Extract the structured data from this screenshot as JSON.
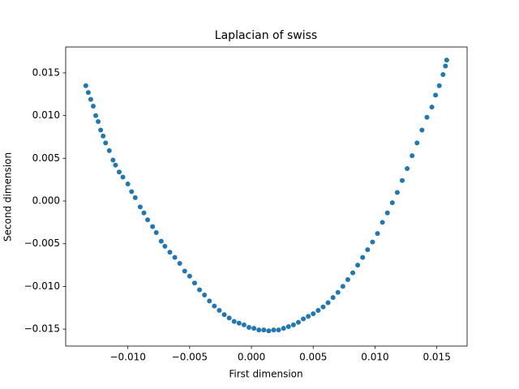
{
  "chart_data": {
    "type": "scatter",
    "title": "Laplacian of swiss",
    "xlabel": "First dimension",
    "ylabel": "Second dimension",
    "color": "#1f77b4",
    "xlim": [
      -0.01503,
      0.01745
    ],
    "ylim": [
      -0.01698,
      0.01803
    ],
    "xticks": [
      {
        "value": -0.01,
        "label": "−0.010"
      },
      {
        "value": -0.005,
        "label": "−0.005"
      },
      {
        "value": 0,
        "label": "0.000"
      },
      {
        "value": 0.005,
        "label": "0.005"
      },
      {
        "value": 0.01,
        "label": "0.010"
      },
      {
        "value": 0.015,
        "label": "0.015"
      }
    ],
    "yticks": [
      {
        "value": -0.015,
        "label": "−0.015"
      },
      {
        "value": -0.01,
        "label": "−0.010"
      },
      {
        "value": -0.005,
        "label": "−0.005"
      },
      {
        "value": 0,
        "label": "0.000"
      },
      {
        "value": 0.005,
        "label": "0.005"
      },
      {
        "value": 0.01,
        "label": "0.010"
      },
      {
        "value": 0.015,
        "label": "0.015"
      }
    ],
    "x": [
      -0.0134,
      -0.0132,
      -0.013,
      -0.0128,
      -0.0126,
      -0.0124,
      -0.0122,
      -0.012,
      -0.0118,
      -0.0115,
      -0.0112,
      -0.011,
      -0.0107,
      -0.0104,
      -0.01,
      -0.0097,
      -0.0094,
      -0.009,
      -0.0087,
      -0.0084,
      -0.008,
      -0.0077,
      -0.0073,
      -0.007,
      -0.0066,
      -0.0062,
      -0.0058,
      -0.0054,
      -0.005,
      -0.0046,
      -0.0042,
      -0.0038,
      -0.0034,
      -0.003,
      -0.0026,
      -0.0022,
      -0.0018,
      -0.0014,
      -0.001,
      -0.0006,
      -0.0002,
      0.0002,
      0.0006,
      0.001,
      0.0014,
      0.0018,
      0.0022,
      0.0026,
      0.003,
      0.0034,
      0.0038,
      0.0042,
      0.0046,
      0.005,
      0.0054,
      0.0058,
      0.0062,
      0.0066,
      0.007,
      0.0074,
      0.0078,
      0.0082,
      0.0086,
      0.009,
      0.0094,
      0.0098,
      0.0102,
      0.0106,
      0.011,
      0.0114,
      0.0118,
      0.0122,
      0.0126,
      0.013,
      0.0134,
      0.0138,
      0.0142,
      0.0146,
      0.0149,
      0.0152,
      0.0155,
      0.0157,
      0.0158
    ],
    "values": [
      0.0135,
      0.0127,
      0.0119,
      0.0111,
      0.01,
      0.0093,
      0.0083,
      0.0076,
      0.0068,
      0.0059,
      0.0048,
      0.0042,
      0.0034,
      0.0028,
      0.002,
      0.0011,
      0.0004,
      -0.0007,
      -0.0014,
      -0.0022,
      -0.003,
      -0.0037,
      -0.0047,
      -0.0053,
      -0.006,
      -0.0066,
      -0.0073,
      -0.0082,
      -0.0088,
      -0.0096,
      -0.0104,
      -0.011,
      -0.0117,
      -0.0123,
      -0.0128,
      -0.0133,
      -0.0137,
      -0.0141,
      -0.0143,
      -0.0145,
      -0.0148,
      -0.0149,
      -0.0151,
      -0.0151,
      -0.0152,
      -0.0151,
      -0.0151,
      -0.0149,
      -0.0147,
      -0.0145,
      -0.0142,
      -0.0138,
      -0.0135,
      -0.0132,
      -0.0128,
      -0.0124,
      -0.0119,
      -0.0113,
      -0.0107,
      -0.01,
      -0.0092,
      -0.0084,
      -0.0075,
      -0.0066,
      -0.0057,
      -0.0048,
      -0.0038,
      -0.0025,
      -0.0014,
      -0.0002,
      0.001,
      0.0024,
      0.0038,
      0.0053,
      0.0068,
      0.0083,
      0.0098,
      0.011,
      0.0124,
      0.0135,
      0.0148,
      0.0158,
      0.0165
    ]
  }
}
